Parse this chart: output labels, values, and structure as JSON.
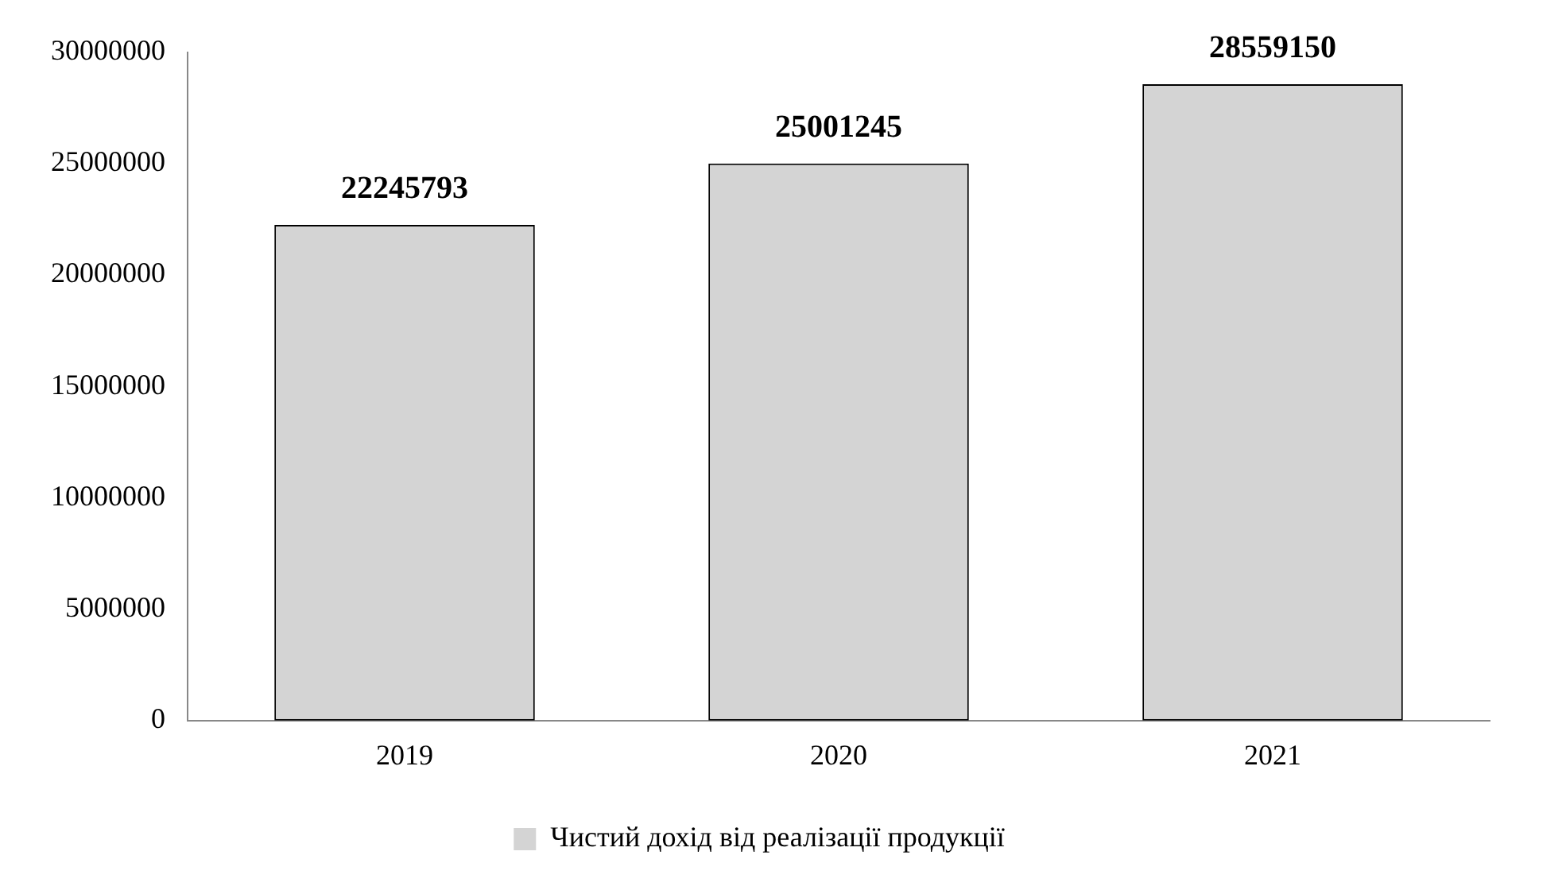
{
  "chart_data": {
    "type": "bar",
    "categories": [
      "2019",
      "2020",
      "2021"
    ],
    "series": [
      {
        "name": "Чистий дохід від реалізації продукції",
        "color": "#d4d4d4",
        "values": [
          22245793,
          25001245,
          28559150
        ]
      }
    ],
    "ylim": [
      0,
      30000000
    ],
    "yticks": [
      0,
      5000000,
      10000000,
      15000000,
      20000000,
      25000000,
      30000000
    ],
    "grid": false,
    "legend": "bottom",
    "data_labels": true
  }
}
